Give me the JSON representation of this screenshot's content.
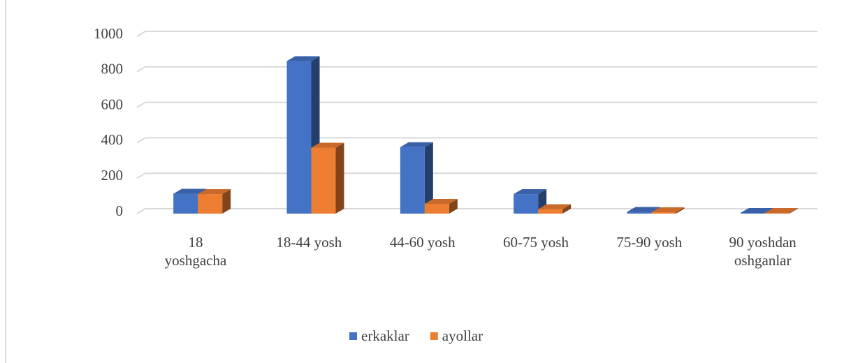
{
  "chart_data": {
    "type": "bar3d",
    "categories": [
      "18\nyoshgacha",
      "18-44 yosh",
      "44-60 yosh",
      "60-75 yosh",
      "75-90 yosh",
      "90 yoshdan\noshganlar"
    ],
    "series": [
      {
        "name": "erkaklar",
        "color": "#4472c4",
        "values": [
          112,
          860,
          375,
          110,
          10,
          4
        ]
      },
      {
        "name": "ayollar",
        "color": "#ed7d31",
        "values": [
          110,
          372,
          55,
          25,
          8,
          4
        ]
      }
    ],
    "ylim": [
      0,
      1000
    ],
    "yticks": [
      0,
      200,
      400,
      600,
      800,
      1000
    ],
    "grid": true,
    "legend": "bottom"
  }
}
